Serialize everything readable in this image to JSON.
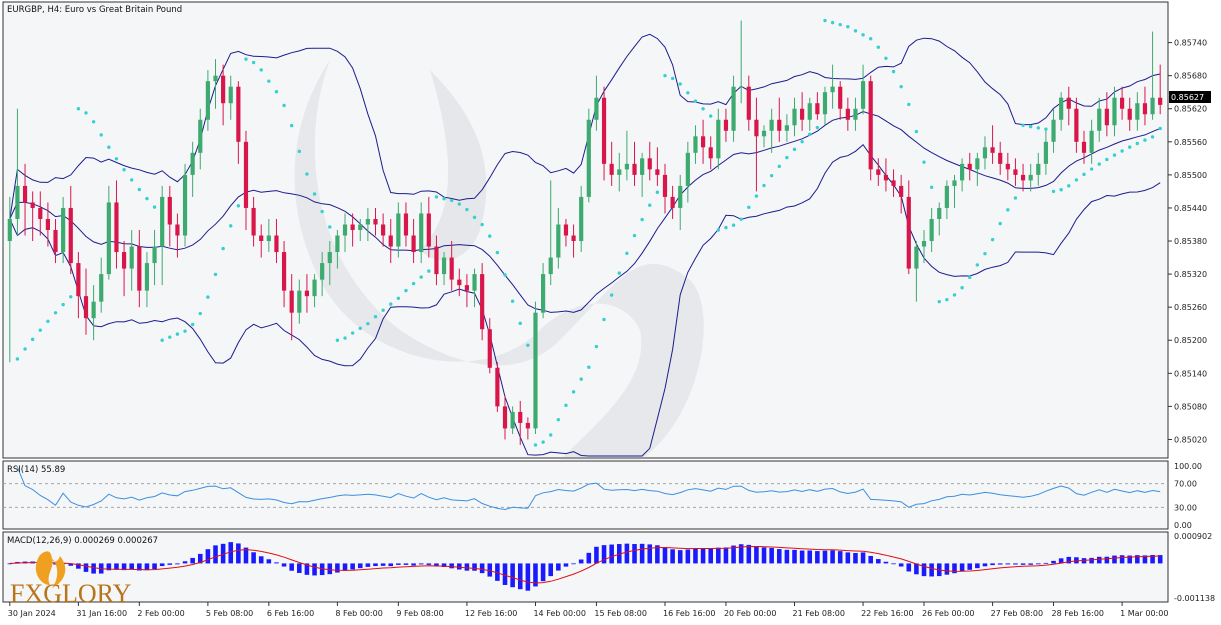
{
  "window": {
    "title": "EURGBP, H4:  Euro vs Great Britain Pound",
    "current_price": "0.85627"
  },
  "logo": {
    "text": "FXGLORY"
  },
  "colors": {
    "bull": "#3daa6f",
    "bear": "#d8164a",
    "bands": "#1c1c8c",
    "sar": "#35d0cf",
    "rsi": "#3c8fe0",
    "macd_hist": "#1a1aff",
    "macd_signal": "#e01010",
    "price_tag": "#000000"
  },
  "chart_data": [
    {
      "type": "candlestick",
      "title": "EURGBP, H4:  Euro vs Great Britain Pound",
      "indicators": [
        "Bollinger Bands",
        "Parabolic SAR"
      ],
      "ylim": [
        0.8499,
        0.8581
      ],
      "y_ticks": [
        "0.85740",
        "0.85680",
        "0.85620",
        "0.85560",
        "0.85500",
        "0.85440",
        "0.85380",
        "0.85320",
        "0.85260",
        "0.85200",
        "0.85140",
        "0.85080",
        "0.85020"
      ],
      "x_ticks": [
        "30 Jan 2024",
        "31 Jan 16:00",
        "2 Feb 00:00",
        "5 Feb 08:00",
        "6 Feb 16:00",
        "8 Feb 00:00",
        "9 Feb 08:00",
        "12 Feb 16:00",
        "14 Feb 00:00",
        "15 Feb 08:00",
        "16 Feb 16:00",
        "20 Feb 00:00",
        "21 Feb 08:00",
        "22 Feb 16:00",
        "26 Feb 00:00",
        "27 Feb 08:00",
        "28 Feb 16:00",
        "1 Mar 00:00"
      ],
      "last_price": "0.85627",
      "candles": [
        [
          0.8538,
          0.8546,
          0.8516,
          0.8542
        ],
        [
          0.8542,
          0.8562,
          0.8539,
          0.8548
        ],
        [
          0.8548,
          0.8552,
          0.8539,
          0.8545
        ],
        [
          0.8545,
          0.8547,
          0.8538,
          0.8544
        ],
        [
          0.8544,
          0.8547,
          0.8539,
          0.8542
        ],
        [
          0.8542,
          0.8545,
          0.8537,
          0.854
        ],
        [
          0.854,
          0.8542,
          0.8534,
          0.8536
        ],
        [
          0.8536,
          0.8546,
          0.8534,
          0.8544
        ],
        [
          0.8544,
          0.8548,
          0.8532,
          0.8534
        ],
        [
          0.8534,
          0.8536,
          0.8524,
          0.8528
        ],
        [
          0.8528,
          0.8533,
          0.8521,
          0.8524
        ],
        [
          0.8524,
          0.853,
          0.852,
          0.8527
        ],
        [
          0.8527,
          0.8535,
          0.8525,
          0.8532
        ],
        [
          0.8532,
          0.8548,
          0.8531,
          0.8545
        ],
        [
          0.8545,
          0.8549,
          0.8533,
          0.8536
        ],
        [
          0.8536,
          0.8538,
          0.8528,
          0.8533
        ],
        [
          0.8533,
          0.854,
          0.8529,
          0.8537
        ],
        [
          0.8537,
          0.854,
          0.8526,
          0.8529
        ],
        [
          0.8529,
          0.8536,
          0.8526,
          0.8534
        ],
        [
          0.8534,
          0.854,
          0.853,
          0.8537
        ],
        [
          0.8537,
          0.8548,
          0.853,
          0.8546
        ],
        [
          0.8546,
          0.8548,
          0.8537,
          0.8541
        ],
        [
          0.8541,
          0.8543,
          0.8535,
          0.8539
        ],
        [
          0.8539,
          0.8552,
          0.8537,
          0.855
        ],
        [
          0.855,
          0.8556,
          0.8546,
          0.8554
        ],
        [
          0.8554,
          0.8562,
          0.8551,
          0.856
        ],
        [
          0.856,
          0.8569,
          0.8558,
          0.8567
        ],
        [
          0.8567,
          0.8571,
          0.8562,
          0.8568
        ],
        [
          0.8568,
          0.857,
          0.8559,
          0.8563
        ],
        [
          0.8563,
          0.8568,
          0.856,
          0.8566
        ],
        [
          0.8566,
          0.8567,
          0.8552,
          0.8556
        ],
        [
          0.8556,
          0.8558,
          0.854,
          0.8544
        ],
        [
          0.8544,
          0.8546,
          0.8537,
          0.8539
        ],
        [
          0.8539,
          0.8541,
          0.8535,
          0.8538
        ],
        [
          0.8538,
          0.8542,
          0.8536,
          0.8539
        ],
        [
          0.8539,
          0.8542,
          0.8534,
          0.8536
        ],
        [
          0.8536,
          0.8538,
          0.8526,
          0.8529
        ],
        [
          0.8529,
          0.8532,
          0.852,
          0.8525
        ],
        [
          0.8525,
          0.8531,
          0.8523,
          0.8529
        ],
        [
          0.8529,
          0.8532,
          0.8525,
          0.8528
        ],
        [
          0.8528,
          0.8532,
          0.8526,
          0.8531
        ],
        [
          0.8531,
          0.8536,
          0.8528,
          0.8534
        ],
        [
          0.8534,
          0.8538,
          0.853,
          0.8536
        ],
        [
          0.8536,
          0.854,
          0.8533,
          0.8539
        ],
        [
          0.8539,
          0.8543,
          0.8536,
          0.8541
        ],
        [
          0.8541,
          0.8543,
          0.8537,
          0.854
        ],
        [
          0.854,
          0.8542,
          0.8538,
          0.8541
        ],
        [
          0.8541,
          0.8544,
          0.8538,
          0.8542
        ],
        [
          0.8542,
          0.8544,
          0.8539,
          0.8541
        ],
        [
          0.8541,
          0.8543,
          0.8537,
          0.8539
        ],
        [
          0.8539,
          0.8542,
          0.8534,
          0.8537
        ],
        [
          0.8537,
          0.8545,
          0.8535,
          0.8543
        ],
        [
          0.8543,
          0.8545,
          0.8537,
          0.8539
        ],
        [
          0.8539,
          0.8542,
          0.8534,
          0.8536
        ],
        [
          0.8536,
          0.8545,
          0.8534,
          0.8543
        ],
        [
          0.8543,
          0.8546,
          0.8535,
          0.8537
        ],
        [
          0.8537,
          0.8539,
          0.853,
          0.8532
        ],
        [
          0.8532,
          0.8536,
          0.853,
          0.8535
        ],
        [
          0.8535,
          0.8538,
          0.8529,
          0.8531
        ],
        [
          0.8531,
          0.8533,
          0.8528,
          0.853
        ],
        [
          0.853,
          0.8532,
          0.8526,
          0.8529
        ],
        [
          0.8529,
          0.8533,
          0.8526,
          0.8532
        ],
        [
          0.8532,
          0.8534,
          0.852,
          0.8522
        ],
        [
          0.8522,
          0.8524,
          0.8514,
          0.8515
        ],
        [
          0.8515,
          0.8516,
          0.8507,
          0.8508
        ],
        [
          0.8508,
          0.851,
          0.8502,
          0.8504
        ],
        [
          0.8504,
          0.8508,
          0.8503,
          0.8507
        ],
        [
          0.8507,
          0.8509,
          0.8501,
          0.8505
        ],
        [
          0.8505,
          0.8506,
          0.8502,
          0.8504
        ],
        [
          0.8504,
          0.8527,
          0.8503,
          0.8525
        ],
        [
          0.8525,
          0.8534,
          0.8524,
          0.8532
        ],
        [
          0.8532,
          0.8549,
          0.853,
          0.8535
        ],
        [
          0.8535,
          0.8544,
          0.8533,
          0.8541
        ],
        [
          0.8541,
          0.8542,
          0.8537,
          0.8539
        ],
        [
          0.8539,
          0.8541,
          0.8535,
          0.8538
        ],
        [
          0.8538,
          0.8548,
          0.8536,
          0.8546
        ],
        [
          0.8546,
          0.8562,
          0.8545,
          0.856
        ],
        [
          0.856,
          0.8568,
          0.8558,
          0.8564
        ],
        [
          0.8564,
          0.8566,
          0.8549,
          0.8552
        ],
        [
          0.8552,
          0.8556,
          0.8548,
          0.855
        ],
        [
          0.855,
          0.8554,
          0.8547,
          0.8551
        ],
        [
          0.8551,
          0.8558,
          0.8549,
          0.8552
        ],
        [
          0.8552,
          0.8556,
          0.8548,
          0.855
        ],
        [
          0.855,
          0.8554,
          0.8546,
          0.8553
        ],
        [
          0.8553,
          0.8556,
          0.8549,
          0.8551
        ],
        [
          0.8551,
          0.8555,
          0.8548,
          0.855
        ],
        [
          0.855,
          0.8552,
          0.8543,
          0.8546
        ],
        [
          0.8546,
          0.8548,
          0.8542,
          0.8544
        ],
        [
          0.8544,
          0.855,
          0.854,
          0.8548
        ],
        [
          0.8548,
          0.8556,
          0.8545,
          0.8554
        ],
        [
          0.8554,
          0.8559,
          0.8552,
          0.8557
        ],
        [
          0.8557,
          0.856,
          0.8552,
          0.8555
        ],
        [
          0.8555,
          0.8557,
          0.8551,
          0.8553
        ],
        [
          0.8553,
          0.8562,
          0.8551,
          0.856
        ],
        [
          0.856,
          0.8562,
          0.8556,
          0.8558
        ],
        [
          0.8558,
          0.8568,
          0.8556,
          0.8566
        ],
        [
          0.8566,
          0.8578,
          0.8563,
          0.8566
        ],
        [
          0.8566,
          0.8568,
          0.8558,
          0.856
        ],
        [
          0.856,
          0.8564,
          0.8547,
          0.8557
        ],
        [
          0.8557,
          0.8559,
          0.8555,
          0.8558
        ],
        [
          0.8558,
          0.8562,
          0.8554,
          0.856
        ],
        [
          0.856,
          0.8564,
          0.8556,
          0.8558
        ],
        [
          0.8558,
          0.8561,
          0.8556,
          0.8559
        ],
        [
          0.8559,
          0.8564,
          0.8557,
          0.8562
        ],
        [
          0.8562,
          0.8565,
          0.8558,
          0.856
        ],
        [
          0.856,
          0.8564,
          0.8558,
          0.8563
        ],
        [
          0.8563,
          0.8565,
          0.856,
          0.8561
        ],
        [
          0.8561,
          0.8566,
          0.8559,
          0.8565
        ],
        [
          0.8565,
          0.857,
          0.8562,
          0.8566
        ],
        [
          0.8566,
          0.8567,
          0.856,
          0.8562
        ],
        [
          0.8562,
          0.8564,
          0.8558,
          0.856
        ],
        [
          0.856,
          0.8564,
          0.8558,
          0.8562
        ],
        [
          0.8562,
          0.857,
          0.8561,
          0.8567
        ],
        [
          0.8567,
          0.8568,
          0.8549,
          0.8551
        ],
        [
          0.8551,
          0.8553,
          0.8548,
          0.855
        ],
        [
          0.855,
          0.8553,
          0.8547,
          0.8549
        ],
        [
          0.8549,
          0.8551,
          0.8546,
          0.8548
        ],
        [
          0.8548,
          0.855,
          0.8543,
          0.8546
        ],
        [
          0.8546,
          0.8549,
          0.8532,
          0.8533
        ],
        [
          0.8533,
          0.8538,
          0.8527,
          0.8537
        ],
        [
          0.8537,
          0.854,
          0.8534,
          0.8538
        ],
        [
          0.8538,
          0.8544,
          0.8536,
          0.8542
        ],
        [
          0.8542,
          0.8545,
          0.8539,
          0.8544
        ],
        [
          0.8544,
          0.8549,
          0.8542,
          0.8548
        ],
        [
          0.8548,
          0.855,
          0.8544,
          0.8549
        ],
        [
          0.8549,
          0.8553,
          0.8547,
          0.8552
        ],
        [
          0.8552,
          0.8554,
          0.8549,
          0.8551
        ],
        [
          0.8551,
          0.8554,
          0.8548,
          0.8553
        ],
        [
          0.8553,
          0.8557,
          0.8551,
          0.8555
        ],
        [
          0.8555,
          0.8559,
          0.8552,
          0.8554
        ],
        [
          0.8554,
          0.8556,
          0.855,
          0.8552
        ],
        [
          0.8552,
          0.8554,
          0.8549,
          0.8551
        ],
        [
          0.8551,
          0.8553,
          0.8548,
          0.855
        ],
        [
          0.855,
          0.8552,
          0.8547,
          0.8549
        ],
        [
          0.8549,
          0.8552,
          0.8547,
          0.855
        ],
        [
          0.855,
          0.8554,
          0.8548,
          0.8552
        ],
        [
          0.8552,
          0.8558,
          0.855,
          0.8556
        ],
        [
          0.8556,
          0.8562,
          0.8554,
          0.856
        ],
        [
          0.856,
          0.8565,
          0.8558,
          0.8564
        ],
        [
          0.8564,
          0.8566,
          0.8559,
          0.8562
        ],
        [
          0.8562,
          0.8564,
          0.8554,
          0.8556
        ],
        [
          0.8556,
          0.8558,
          0.8552,
          0.8554
        ],
        [
          0.8554,
          0.856,
          0.8552,
          0.8558
        ],
        [
          0.8558,
          0.8564,
          0.8556,
          0.8562
        ],
        [
          0.8562,
          0.8565,
          0.8557,
          0.8559
        ],
        [
          0.8559,
          0.8566,
          0.8557,
          0.8564
        ],
        [
          0.8564,
          0.8566,
          0.856,
          0.8562
        ],
        [
          0.8562,
          0.8564,
          0.8558,
          0.856
        ],
        [
          0.856,
          0.8565,
          0.8558,
          0.8563
        ],
        [
          0.8563,
          0.8566,
          0.8559,
          0.8561
        ],
        [
          0.8561,
          0.8576,
          0.856,
          0.8564
        ],
        [
          0.8564,
          0.857,
          0.8561,
          0.85627
        ]
      ]
    },
    {
      "type": "line",
      "title": "RSI(14) 55.89",
      "indicator": "RSI(14)",
      "value": 55.89,
      "ylim": [
        0,
        100
      ],
      "y_ticks": [
        "100.00",
        "70.00",
        "30.00",
        "0.00"
      ],
      "levels": [
        70,
        30
      ]
    },
    {
      "type": "bar",
      "title": "MACD(12,26,9) 0.000269 0.000267",
      "indicator": "MACD(12,26,9)",
      "macd": 0.000269,
      "signal": 0.000267,
      "ylim": [
        -0.001138,
        0.000902
      ],
      "y_ticks": [
        "0.000902",
        "-0.001138"
      ]
    }
  ]
}
